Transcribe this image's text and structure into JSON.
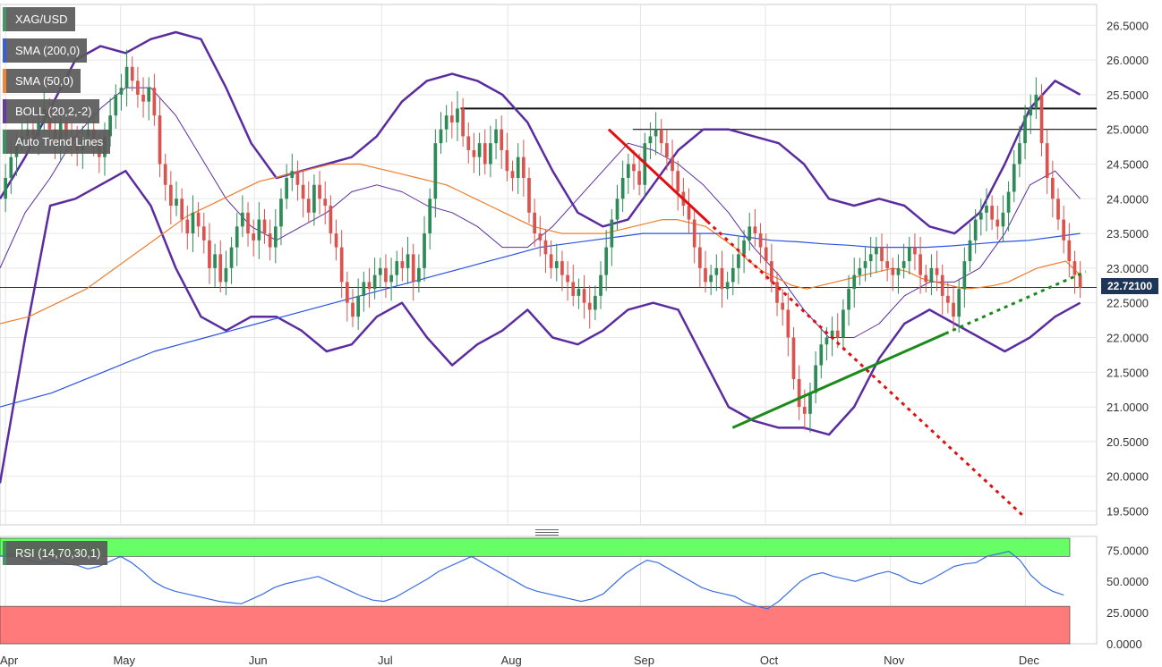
{
  "legend": {
    "symbol": "XAG/USD",
    "sma200": "SMA (200,0)",
    "sma50": "SMA (50,0)",
    "boll": "BOLL (20,2,-2)",
    "trend": "Auto Trend Lines",
    "rsi": "RSI (14,70,30,1)"
  },
  "colors": {
    "up": "#2e8b57",
    "down": "#d9534f",
    "sma200": "#2a52e0",
    "sma50": "#f07d2b",
    "boll": "#5a2ca0",
    "rsi": "#3b6fe0",
    "overbought_zone": "#66ff66",
    "oversold_zone": "#ff7b7b",
    "price_badge": "#1d3557"
  },
  "current_price": "22.72100",
  "chart_data": {
    "type": "line",
    "main_y_ticks": [
      "26.5000",
      "26.0000",
      "25.5000",
      "25.0000",
      "24.5000",
      "24.0000",
      "23.5000",
      "23.0000",
      "22.5000",
      "22.0000",
      "21.5000",
      "21.0000",
      "20.5000",
      "20.0000",
      "19.5000"
    ],
    "rsi_y_ticks": [
      "75.0000",
      "50.0000",
      "25.0000",
      "0.0000"
    ],
    "x_ticks": [
      "Apr",
      "May",
      "Jun",
      "Jul",
      "Aug",
      "Sep",
      "Oct",
      "Nov",
      "Dec"
    ],
    "ylim": [
      19.3,
      26.8
    ],
    "rsi_ylim": [
      0,
      86
    ],
    "horizontal_levels": [
      25.3,
      25.0,
      22.721
    ],
    "close": [
      24.0,
      24.3,
      24.6,
      24.8,
      24.9,
      25.0,
      24.9,
      25.1,
      25.3,
      25.0,
      24.8,
      25.1,
      24.9,
      24.8,
      24.7,
      24.9,
      25.0,
      24.8,
      24.6,
      24.9,
      25.2,
      25.5,
      25.6,
      25.9,
      25.7,
      25.5,
      25.4,
      25.6,
      25.2,
      24.5,
      24.2,
      23.9,
      24.0,
      23.7,
      23.5,
      23.8,
      23.6,
      23.4,
      23.0,
      23.2,
      22.8,
      23.0,
      23.3,
      23.6,
      23.8,
      23.5,
      23.4,
      23.7,
      23.5,
      23.3,
      23.6,
      24.0,
      24.3,
      24.4,
      24.2,
      24.0,
      23.8,
      24.2,
      24.0,
      23.9,
      23.5,
      23.3,
      22.8,
      22.5,
      22.3,
      22.6,
      22.8,
      22.7,
      22.9,
      23.0,
      22.8,
      22.9,
      23.1,
      23.0,
      23.2,
      22.8,
      23.0,
      23.5,
      24.0,
      24.8,
      25.0,
      25.2,
      25.1,
      25.3,
      24.9,
      24.7,
      24.6,
      24.8,
      24.5,
      24.8,
      25.0,
      24.7,
      24.4,
      24.3,
      24.6,
      24.3,
      23.8,
      23.5,
      23.4,
      23.2,
      23.0,
      23.1,
      22.9,
      22.8,
      22.6,
      22.7,
      22.5,
      22.4,
      22.6,
      22.9,
      23.3,
      23.7,
      24.0,
      24.3,
      24.5,
      24.4,
      24.2,
      24.8,
      24.9,
      25.0,
      24.8,
      24.6,
      24.4,
      24.1,
      23.9,
      23.7,
      23.3,
      23.0,
      22.8,
      22.9,
      23.0,
      22.7,
      22.8,
      23.0,
      23.2,
      23.4,
      23.6,
      23.5,
      23.3,
      23.1,
      22.8,
      22.5,
      22.4,
      22.0,
      21.4,
      21.0,
      20.9,
      21.2,
      21.6,
      21.9,
      22.0,
      22.1,
      22.0,
      22.4,
      22.7,
      22.9,
      23.0,
      23.1,
      23.2,
      23.3,
      23.1,
      23.0,
      22.9,
      23.0,
      23.1,
      23.3,
      23.2,
      22.9,
      22.8,
      23.0,
      22.9,
      22.6,
      22.5,
      22.3,
      22.7,
      23.1,
      23.4,
      23.7,
      23.8,
      23.9,
      23.7,
      23.6,
      23.8,
      24.1,
      24.5,
      24.8,
      25.2,
      25.3,
      25.5,
      24.8,
      24.3,
      24.0,
      23.7,
      23.4,
      23.1,
      22.9,
      22.72
    ],
    "sma50": [
      22.2,
      22.25,
      22.3,
      22.4,
      22.5,
      22.6,
      22.7,
      22.85,
      23.0,
      23.15,
      23.3,
      23.45,
      23.6,
      23.75,
      23.85,
      23.95,
      24.05,
      24.15,
      24.25,
      24.3,
      24.35,
      24.4,
      24.45,
      24.5,
      24.5,
      24.5,
      24.45,
      24.4,
      24.35,
      24.3,
      24.25,
      24.2,
      24.1,
      24.0,
      23.9,
      23.8,
      23.7,
      23.6,
      23.55,
      23.5,
      23.5,
      23.5,
      23.5,
      23.55,
      23.6,
      23.65,
      23.7,
      23.7,
      23.65,
      23.6,
      23.45,
      23.3,
      23.1,
      22.95,
      22.85,
      22.75,
      22.7,
      22.75,
      22.8,
      22.85,
      22.9,
      22.95,
      23.0,
      22.95,
      22.85,
      22.8,
      22.75,
      22.7,
      22.72,
      22.75,
      22.8,
      22.9,
      23.0,
      23.05,
      23.1,
      22.9
    ],
    "sma200": [
      21.0,
      21.1,
      21.2,
      21.35,
      21.5,
      21.65,
      21.8,
      21.9,
      22.0,
      22.1,
      22.2,
      22.3,
      22.4,
      22.5,
      22.6,
      22.7,
      22.8,
      22.9,
      23.0,
      23.1,
      23.2,
      23.3,
      23.35,
      23.4,
      23.45,
      23.5,
      23.5,
      23.5,
      23.5,
      23.45,
      23.4,
      23.38,
      23.35,
      23.33,
      23.3,
      23.3,
      23.3,
      23.32,
      23.35,
      23.38,
      23.4,
      23.45,
      23.5
    ],
    "boll_upper": [
      24.0,
      24.6,
      25.3,
      26.0,
      26.2,
      26.1,
      26.3,
      26.4,
      26.3,
      25.6,
      24.8,
      24.3,
      24.4,
      24.5,
      24.6,
      24.9,
      25.4,
      25.7,
      25.8,
      25.7,
      25.5,
      25.1,
      24.4,
      23.8,
      23.6,
      23.7,
      24.2,
      24.7,
      25.0,
      25.0,
      24.9,
      24.8,
      24.5,
      24.0,
      23.9,
      24.0,
      23.9,
      23.6,
      23.5,
      23.8,
      24.5,
      25.3,
      25.7,
      25.5
    ],
    "boll_mid": [
      23.0,
      23.8,
      24.3,
      24.9,
      25.3,
      25.6,
      25.6,
      25.2,
      24.6,
      24.0,
      23.6,
      23.4,
      23.6,
      23.8,
      24.1,
      24.2,
      24.1,
      23.9,
      23.8,
      23.6,
      23.3,
      23.3,
      23.6,
      24.0,
      24.4,
      24.8,
      24.7,
      24.5,
      24.2,
      23.8,
      23.3,
      22.9,
      22.4,
      22.0,
      22.0,
      22.2,
      22.6,
      22.8,
      22.8,
      23.0,
      23.5,
      24.2,
      24.4,
      24.0
    ],
    "boll_lower": [
      19.9,
      22.0,
      23.9,
      24.0,
      24.2,
      24.4,
      23.9,
      23.0,
      22.3,
      22.1,
      22.3,
      22.3,
      22.1,
      21.8,
      21.9,
      22.3,
      22.5,
      22.0,
      21.6,
      21.9,
      22.1,
      22.4,
      22.0,
      21.9,
      22.1,
      22.4,
      22.5,
      22.4,
      21.7,
      21.0,
      20.8,
      20.7,
      20.7,
      20.6,
      21.0,
      21.7,
      22.2,
      22.4,
      22.2,
      22.0,
      21.8,
      22.0,
      22.3,
      22.5
    ],
    "trend_down": {
      "from": [
        0.555,
        25.0
      ],
      "to": [
        0.935,
        19.4
      ]
    },
    "trend_up": {
      "from": [
        0.668,
        20.7
      ],
      "to": [
        0.99,
        22.95
      ]
    },
    "rsi": [
      70,
      72,
      68,
      66,
      65,
      67,
      64,
      63,
      60,
      62,
      66,
      70,
      65,
      58,
      50,
      45,
      42,
      40,
      38,
      36,
      34,
      33,
      32,
      36,
      40,
      45,
      48,
      50,
      52,
      54,
      50,
      46,
      42,
      38,
      35,
      34,
      37,
      42,
      47,
      52,
      58,
      62,
      66,
      70,
      65,
      60,
      55,
      50,
      45,
      42,
      40,
      38,
      36,
      34,
      36,
      40,
      48,
      56,
      62,
      67,
      65,
      60,
      55,
      50,
      45,
      42,
      40,
      38,
      33,
      30,
      28,
      34,
      42,
      50,
      55,
      57,
      54,
      52,
      50,
      53,
      56,
      58,
      55,
      50,
      48,
      52,
      57,
      62,
      64,
      65,
      70,
      72,
      74,
      67,
      55,
      47,
      42,
      39
    ]
  }
}
